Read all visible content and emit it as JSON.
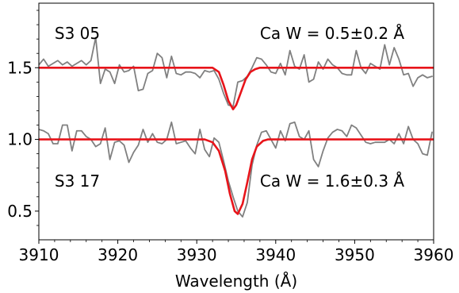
{
  "chart_data": {
    "type": "line",
    "xlabel": "Wavelength (Å)",
    "ylabel": "",
    "xlim": [
      3910,
      3960
    ],
    "ylim": [
      0.3,
      1.95
    ],
    "x_ticks": [
      3910,
      3920,
      3930,
      3940,
      3950,
      3960
    ],
    "y_ticks": [
      0.5,
      1.0,
      1.5
    ],
    "grid": false,
    "annotations": [
      {
        "text": "S3 05",
        "x": 3912,
        "y": 1.74
      },
      {
        "text": "Ca W = 0.5±0.2 Å",
        "x": 3938,
        "y": 1.74
      },
      {
        "text": "S3 17",
        "x": 3912,
        "y": 0.71
      },
      {
        "text": "Ca W = 1.6±0.3 Å",
        "x": 3938,
        "y": 0.71
      }
    ],
    "series": [
      {
        "role": "observed",
        "color": "#808080",
        "x": [
          3910,
          3910.6,
          3911.2,
          3911.8,
          3912.4,
          3913.0,
          3913.6,
          3914.2,
          3914.8,
          3915.4,
          3916.0,
          3916.6,
          3917.2,
          3917.8,
          3918.4,
          3919.0,
          3919.6,
          3920.2,
          3920.8,
          3921.4,
          3922.0,
          3922.6,
          3923.2,
          3923.8,
          3924.4,
          3925.0,
          3925.6,
          3926.2,
          3926.8,
          3927.4,
          3928.0,
          3928.6,
          3929.2,
          3929.8,
          3930.4,
          3931.0,
          3931.6,
          3932.2,
          3932.8,
          3933.4,
          3934.0,
          3934.6,
          3935.2,
          3935.8,
          3936.4,
          3937.0,
          3937.6,
          3938.2,
          3938.8,
          3939.4,
          3940.0,
          3940.6,
          3941.2,
          3941.8,
          3942.4,
          3943.0,
          3943.6,
          3944.2,
          3944.8,
          3945.4,
          3946.0,
          3946.6,
          3947.2,
          3947.8,
          3948.4,
          3949.0,
          3949.6,
          3950.2,
          3950.8,
          3951.4,
          3952.0,
          3952.6,
          3953.2,
          3953.8,
          3954.4,
          3955.0,
          3955.6,
          3956.2,
          3956.8,
          3957.4,
          3958.0,
          3958.6,
          3959.2,
          3959.8
        ],
        "y": [
          1.52,
          1.56,
          1.51,
          1.53,
          1.55,
          1.52,
          1.54,
          1.51,
          1.53,
          1.55,
          1.52,
          1.55,
          1.71,
          1.39,
          1.49,
          1.47,
          1.39,
          1.52,
          1.47,
          1.48,
          1.51,
          1.34,
          1.35,
          1.46,
          1.48,
          1.6,
          1.57,
          1.43,
          1.58,
          1.46,
          1.45,
          1.47,
          1.47,
          1.46,
          1.43,
          1.48,
          1.47,
          1.48,
          1.42,
          1.32,
          1.24,
          1.23,
          1.4,
          1.41,
          1.44,
          1.5,
          1.57,
          1.56,
          1.52,
          1.47,
          1.46,
          1.53,
          1.45,
          1.62,
          1.51,
          1.49,
          1.59,
          1.4,
          1.42,
          1.54,
          1.49,
          1.56,
          1.52,
          1.5,
          1.46,
          1.45,
          1.45,
          1.62,
          1.5,
          1.46,
          1.53,
          1.51,
          1.49,
          1.66,
          1.52,
          1.64,
          1.56,
          1.45,
          1.46,
          1.37,
          1.43,
          1.45,
          1.43,
          1.44
        ]
      },
      {
        "role": "fit",
        "color": "#e8141a",
        "x": [
          3910,
          3932.0,
          3932.8,
          3933.4,
          3934.0,
          3934.6,
          3935.0,
          3935.6,
          3936.2,
          3936.8,
          3937.4,
          3938.0,
          3960
        ],
        "y": [
          1.5,
          1.5,
          1.47,
          1.38,
          1.27,
          1.21,
          1.24,
          1.33,
          1.42,
          1.47,
          1.49,
          1.5,
          1.5
        ]
      },
      {
        "role": "observed",
        "color": "#808080",
        "x": [
          3910,
          3910.6,
          3911.2,
          3911.8,
          3912.4,
          3913.0,
          3913.6,
          3914.2,
          3914.8,
          3915.4,
          3916.0,
          3916.6,
          3917.2,
          3917.8,
          3918.4,
          3919.0,
          3919.6,
          3920.2,
          3920.8,
          3921.4,
          3922.0,
          3922.6,
          3923.2,
          3923.8,
          3924.4,
          3925.0,
          3925.6,
          3926.2,
          3926.8,
          3927.4,
          3928.0,
          3928.6,
          3929.2,
          3929.8,
          3930.4,
          3931.0,
          3931.6,
          3932.2,
          3932.8,
          3933.4,
          3934.0,
          3934.6,
          3935.2,
          3935.8,
          3936.4,
          3937.0,
          3937.6,
          3938.2,
          3938.8,
          3939.4,
          3940.0,
          3940.6,
          3941.2,
          3941.8,
          3942.4,
          3943.0,
          3943.6,
          3944.2,
          3944.8,
          3945.4,
          3946.0,
          3946.6,
          3947.2,
          3947.8,
          3948.4,
          3949.0,
          3949.6,
          3950.2,
          3950.8,
          3951.4,
          3952.0,
          3952.6,
          3953.2,
          3953.8,
          3954.4,
          3955.0,
          3955.6,
          3956.2,
          3956.8,
          3957.4,
          3958.0,
          3958.6,
          3959.2,
          3959.8
        ],
        "y": [
          1.07,
          1.06,
          1.04,
          0.97,
          0.97,
          1.1,
          1.1,
          0.92,
          1.06,
          1.06,
          1.02,
          1.0,
          0.95,
          0.97,
          1.08,
          0.86,
          0.98,
          0.99,
          0.96,
          0.84,
          0.91,
          0.96,
          1.07,
          0.98,
          1.04,
          0.98,
          0.97,
          1.0,
          1.12,
          0.97,
          0.98,
          0.99,
          0.94,
          0.9,
          1.07,
          0.93,
          0.88,
          1.01,
          0.98,
          0.85,
          0.71,
          0.6,
          0.5,
          0.46,
          0.56,
          0.82,
          0.96,
          1.05,
          1.06,
          1.0,
          0.94,
          1.06,
          0.99,
          1.11,
          1.12,
          1.02,
          1.0,
          1.06,
          0.86,
          0.81,
          0.92,
          1.01,
          1.05,
          1.07,
          1.06,
          1.02,
          1.1,
          1.08,
          1.03,
          0.98,
          0.97,
          0.98,
          0.98,
          0.98,
          1.0,
          0.97,
          1.04,
          0.97,
          1.09,
          1.0,
          0.97,
          0.9,
          0.89,
          1.05
        ]
      },
      {
        "role": "fit",
        "color": "#e8141a",
        "x": [
          3910,
          3931.0,
          3932.0,
          3932.8,
          3933.6,
          3934.2,
          3934.8,
          3935.2,
          3935.8,
          3936.4,
          3937.0,
          3937.6,
          3938.4,
          3939.0,
          3960
        ],
        "y": [
          1.0,
          1.0,
          0.98,
          0.92,
          0.78,
          0.62,
          0.5,
          0.48,
          0.55,
          0.7,
          0.86,
          0.95,
          0.99,
          1.0,
          1.0
        ]
      }
    ]
  }
}
